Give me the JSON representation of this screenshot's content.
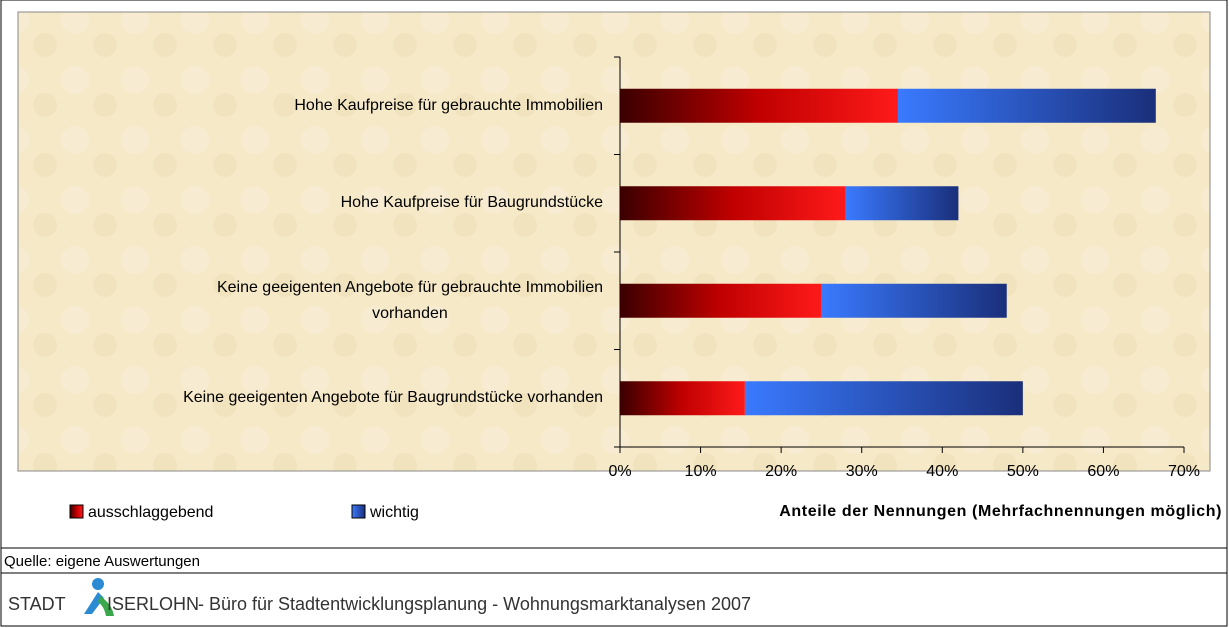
{
  "chart_data": {
    "type": "stacked_barh",
    "categories": [
      "Hohe Kaufpreise für gebrauchte Immobilien",
      "Hohe Kaufpreise für Baugrundstücke",
      "Keine geeigenten Angebote für gebrauchte Immobilien\nvorhanden",
      "Keine geeigenten Angebote für Baugrundstücke vorhanden"
    ],
    "series": [
      {
        "name": "ausschlaggebend",
        "color": "#ff1a1a",
        "values": [
          34.5,
          28,
          25,
          15.5
        ]
      },
      {
        "name": "wichtig",
        "color": "#3a7aff",
        "values": [
          32,
          14,
          23,
          34.5
        ]
      }
    ],
    "xlim": [
      0,
      70
    ],
    "xticks": [
      {
        "value": 0,
        "label": "0%"
      },
      {
        "value": 10,
        "label": "10%"
      },
      {
        "value": 20,
        "label": "20%"
      },
      {
        "value": 30,
        "label": "30%"
      },
      {
        "value": 40,
        "label": "40%"
      },
      {
        "value": 50,
        "label": "50%"
      },
      {
        "value": 60,
        "label": "60%"
      },
      {
        "value": 70,
        "label": "70%"
      }
    ],
    "xlabel": "Anteile der Nennungen (Mehrfachnennungen möglich)",
    "legend": "bottom-left"
  },
  "source": "Quelle: eigene Auswertungen",
  "footer": {
    "left": "STADT",
    "right": "ISERLOHN",
    "rest": " - Büro für Stadtentwicklungsplanung - Wohnungsmarktanalysen 2007"
  }
}
